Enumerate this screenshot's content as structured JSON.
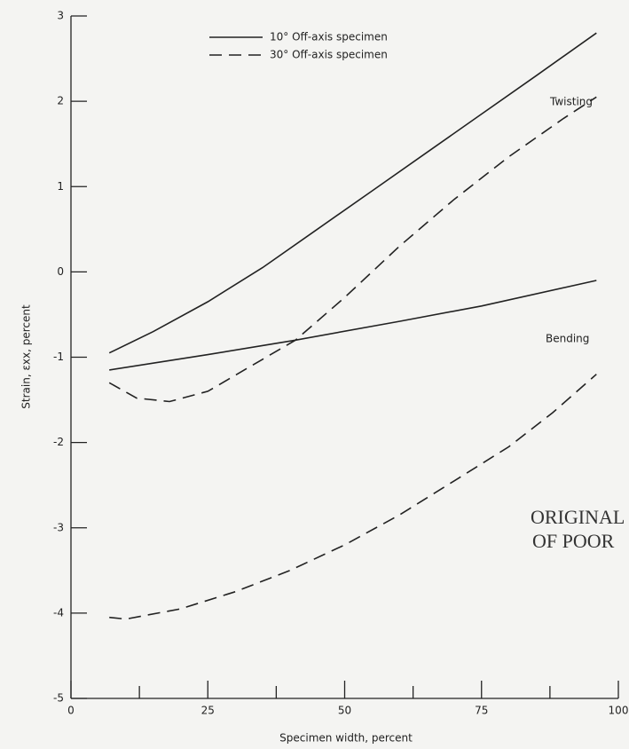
{
  "chart_data": {
    "type": "line",
    "xlabel": "Specimen width, percent",
    "ylabel": "Strain, εxx, percent",
    "xlim": [
      0,
      100
    ],
    "xticks": [
      0,
      25,
      50,
      75,
      100
    ],
    "xminorticks": [
      12.5,
      37.5,
      62.5,
      87.5
    ],
    "ylim": [
      -5,
      3
    ],
    "yticks": [
      -5,
      -4,
      -3,
      -2,
      -1,
      0,
      1,
      2,
      3
    ],
    "legend": "upper left",
    "series": [
      {
        "name": "10° Off-axis specimen",
        "color": "#222",
        "dash": false,
        "x": [
          7,
          15,
          25,
          35,
          45,
          55,
          65,
          75,
          85,
          96
        ],
        "values": [
          -0.95,
          -0.7,
          -0.35,
          0.05,
          0.5,
          0.95,
          1.4,
          1.85,
          2.3,
          2.8
        ]
      },
      {
        "name": "30° Off-axis specimen",
        "color": "#222",
        "dash": true,
        "x": [
          7,
          12,
          18,
          25,
          33,
          41,
          50,
          60,
          70,
          80,
          90,
          96
        ],
        "values": [
          -1.3,
          -1.48,
          -1.52,
          -1.4,
          -1.1,
          -0.8,
          -0.3,
          0.3,
          0.85,
          1.35,
          1.8,
          2.05
        ]
      },
      {
        "name": null,
        "color": "#222",
        "dash": false,
        "x": [
          7,
          25,
          41,
          60,
          75,
          96
        ],
        "values": [
          -1.15,
          -0.97,
          -0.8,
          -0.58,
          -0.4,
          -0.1
        ]
      },
      {
        "name": null,
        "color": "#222",
        "dash": true,
        "x": [
          7,
          10,
          20,
          30,
          40,
          50,
          60,
          70,
          80,
          88,
          96
        ],
        "values": [
          -4.05,
          -4.07,
          -3.95,
          -3.75,
          -3.5,
          -3.2,
          -2.85,
          -2.45,
          -2.05,
          -1.65,
          -1.2
        ]
      }
    ],
    "annotations": [
      "Twisting",
      "Bending",
      "ORIGINAL",
      "OF POOR"
    ]
  }
}
